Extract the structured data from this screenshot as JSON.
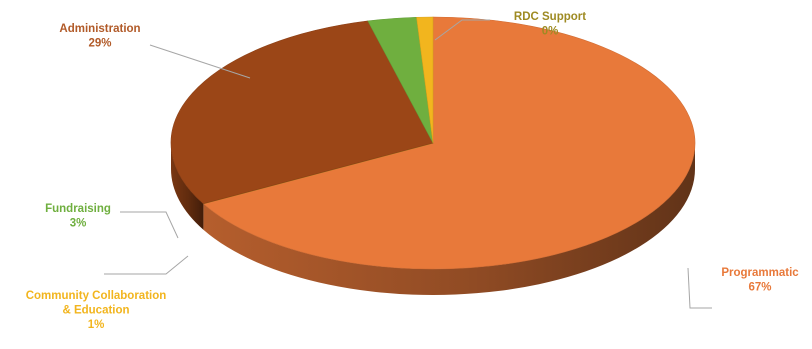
{
  "chart_data": {
    "type": "pie",
    "style": "3d",
    "title": "",
    "slices": [
      {
        "name": "Programmatic",
        "value": 67,
        "label": "67%",
        "color": "#E8793A"
      },
      {
        "name": "RDC Support",
        "value": 0,
        "label": "0%",
        "color": "#9E8A22"
      },
      {
        "name": "Administration",
        "value": 29,
        "label": "29%",
        "color": "#9B4617"
      },
      {
        "name": "Fundraising",
        "value": 3,
        "label": "3%",
        "color": "#6FAF3F"
      },
      {
        "name": "Community Collaboration & Education",
        "value": 1,
        "label": "1%",
        "color": "#F2B51E"
      }
    ],
    "label_text": [
      {
        "name_lines": [
          "Programmatic"
        ],
        "pct": "67%",
        "color": "#E8793A"
      },
      {
        "name_lines": [
          "RDC Support"
        ],
        "pct": "0%",
        "color": "#9E8A22"
      },
      {
        "name_lines": [
          "Administration"
        ],
        "pct": "29%",
        "color": "#B15A28"
      },
      {
        "name_lines": [
          "Fundraising"
        ],
        "pct": "3%",
        "color": "#6FAF3F"
      },
      {
        "name_lines": [
          "Community Collaboration",
          "& Education"
        ],
        "pct": "1%",
        "color": "#F2B51E"
      }
    ]
  }
}
